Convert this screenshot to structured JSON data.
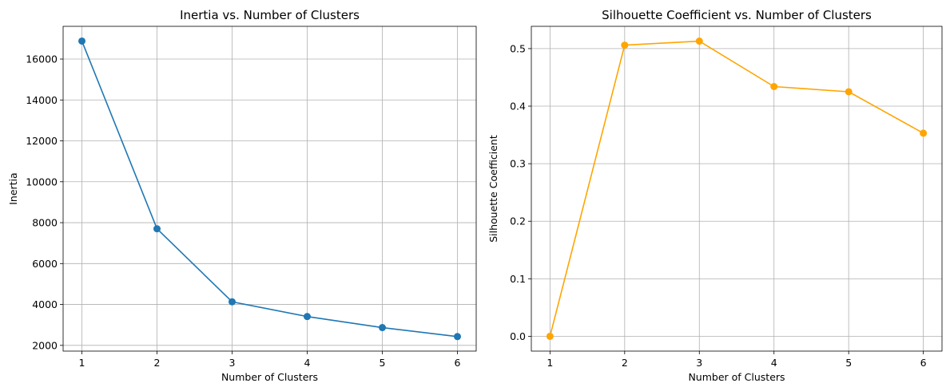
{
  "chart_data": [
    {
      "type": "line",
      "title": "Inertia vs. Number of Clusters",
      "xlabel": "Number of Clusters",
      "ylabel": "Inertia",
      "x": [
        1,
        2,
        3,
        4,
        5,
        6
      ],
      "series": [
        {
          "values": [
            16880,
            7700,
            4130,
            3410,
            2870,
            2430
          ],
          "color": "#1f77b4",
          "marker": "circle"
        }
      ],
      "xlim": [
        0.75,
        6.25
      ],
      "ylim": [
        1720,
        17600
      ],
      "xticks": [
        1,
        2,
        3,
        4,
        5,
        6
      ],
      "yticks": [
        2000,
        4000,
        6000,
        8000,
        10000,
        12000,
        14000,
        16000
      ],
      "grid": true
    },
    {
      "type": "line",
      "title": "Silhouette Coefficient vs. Number of Clusters",
      "xlabel": "Number of Clusters",
      "ylabel": "Silhouette Coefficient",
      "x": [
        1,
        2,
        3,
        4,
        5,
        6
      ],
      "series": [
        {
          "values": [
            0.0,
            0.506,
            0.513,
            0.434,
            0.425,
            0.353
          ],
          "color": "#ffa500",
          "marker": "circle"
        }
      ],
      "xlim": [
        0.75,
        6.25
      ],
      "ylim": [
        -0.0257,
        0.5387
      ],
      "xticks": [
        1,
        2,
        3,
        4,
        5,
        6
      ],
      "yticks": [
        0.0,
        0.1,
        0.2,
        0.3,
        0.4,
        0.5
      ],
      "ytick_labels": [
        "0.0",
        "0.1",
        "0.2",
        "0.3",
        "0.4",
        "0.5"
      ],
      "grid": true
    }
  ]
}
